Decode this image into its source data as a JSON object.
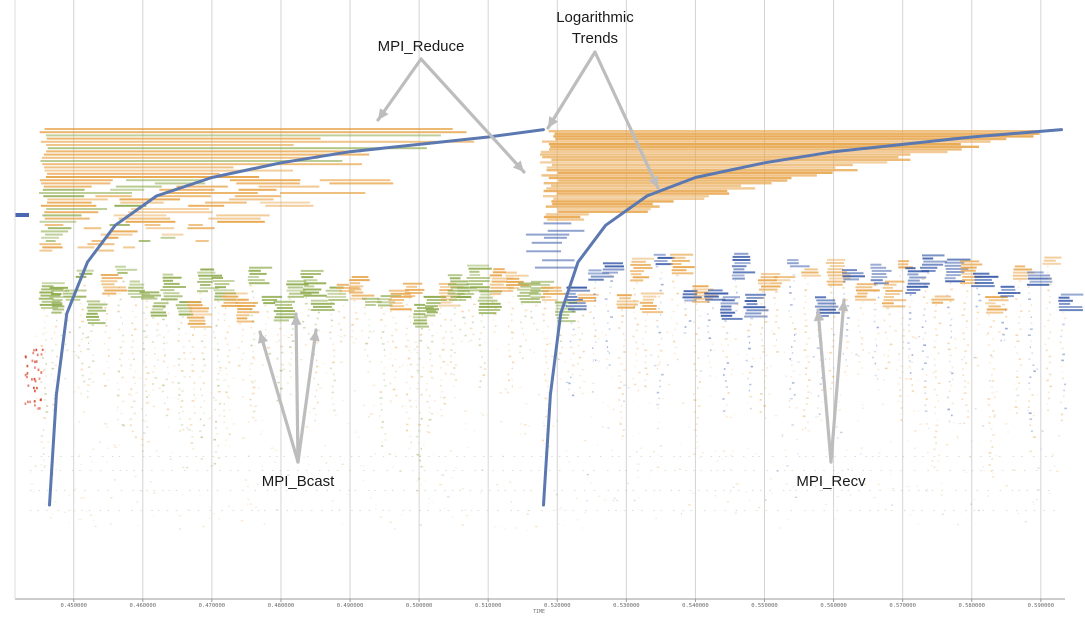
{
  "chart_data": {
    "type": "scatter",
    "xlabel": "TIME",
    "xlim": [
      0.4415,
      0.5935
    ],
    "x_ticks": [
      0.45,
      0.46,
      0.47,
      0.48,
      0.49,
      0.5,
      0.51,
      0.52,
      0.53,
      0.54,
      0.55,
      0.56,
      0.57,
      0.58,
      0.59
    ],
    "x_tick_labels": [
      "0.450000",
      "0.460000",
      "0.470000",
      "0.480000",
      "0.490000",
      "0.500000",
      "0.510000",
      "0.520000",
      "0.530000",
      "0.540000",
      "0.550000",
      "0.560000",
      "0.570000",
      "0.580000",
      "0.590000"
    ],
    "grid": "vertical",
    "colors": {
      "reduce": "#E8A54B",
      "bcast": "#8DAA4B",
      "recv": "#3558A8",
      "other": "#D9472F",
      "trend": "#5B78B0",
      "arrow": "#BDBDBD",
      "grid": "#D4D4D4"
    },
    "trends": [
      {
        "x": [
          0.4465,
          0.4475,
          0.449,
          0.452,
          0.456,
          0.462,
          0.47,
          0.48,
          0.49,
          0.5,
          0.51,
          0.518
        ],
        "y": [
          0.0,
          0.3,
          0.52,
          0.66,
          0.76,
          0.84,
          0.89,
          0.93,
          0.96,
          0.98,
          1.0,
          1.02
        ]
      },
      {
        "x": [
          0.518,
          0.519,
          0.5205,
          0.523,
          0.527,
          0.533,
          0.54,
          0.55,
          0.56,
          0.57,
          0.58,
          0.593
        ],
        "y": [
          0.0,
          0.3,
          0.52,
          0.66,
          0.76,
          0.84,
          0.89,
          0.93,
          0.96,
          0.98,
          1.0,
          1.02
        ]
      }
    ],
    "annotations": [
      {
        "text": "MPI_Reduce"
      },
      {
        "text": "Logarithmic"
      },
      {
        "text": "Trends"
      },
      {
        "text": "MPI_Bcast"
      },
      {
        "text": "MPI_Recv"
      }
    ]
  }
}
